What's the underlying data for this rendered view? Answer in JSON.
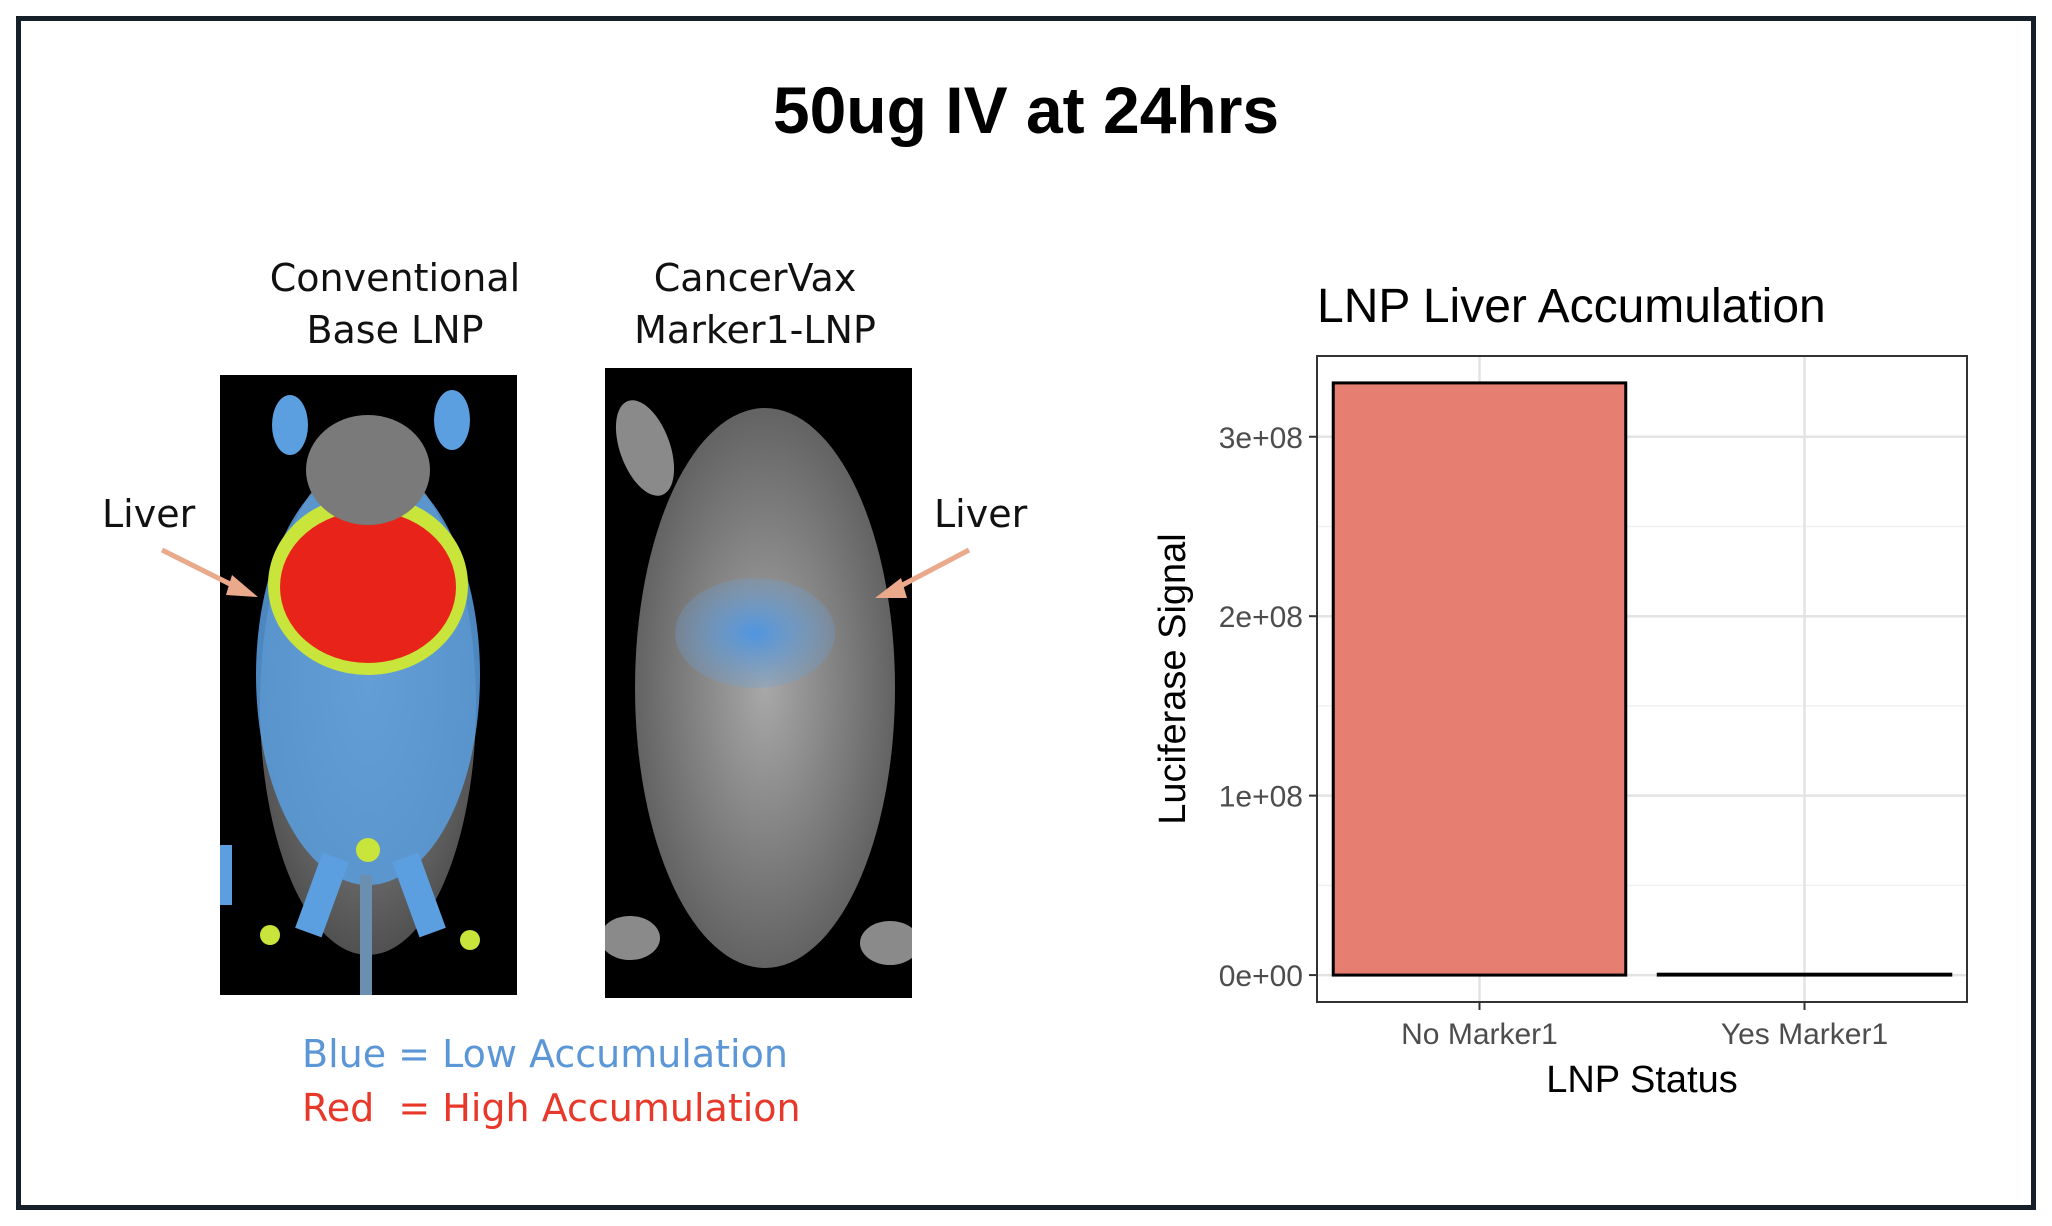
{
  "title": "50ug IV at 24hrs",
  "panels": [
    {
      "label_line1": "Conventional",
      "label_line2": "Base LNP",
      "liver_label": "Liver"
    },
    {
      "label_line1": "CancerVax",
      "label_line2": "Marker1-LNP",
      "liver_label": "Liver"
    }
  ],
  "legend": {
    "low": "Blue = Low Accumulation",
    "high": "Red  = High Accumulation",
    "low_color": "#5b96d6",
    "high_color": "#e8382a"
  },
  "chart_data": {
    "type": "bar",
    "title": "LNP Liver Accumulation",
    "xlabel": "LNP Status",
    "ylabel": "Luciferase Signal",
    "categories": [
      "No Marker1",
      "Yes Marker1"
    ],
    "values": [
      330000000,
      500000
    ],
    "ylim": [
      -15000000,
      345000000
    ],
    "yticks": [
      0,
      100000000,
      200000000,
      300000000
    ],
    "ytick_labels": [
      "0e+00",
      "1e+08",
      "2e+08",
      "3e+08"
    ],
    "bar_color": "#e67f72",
    "grid": true
  }
}
